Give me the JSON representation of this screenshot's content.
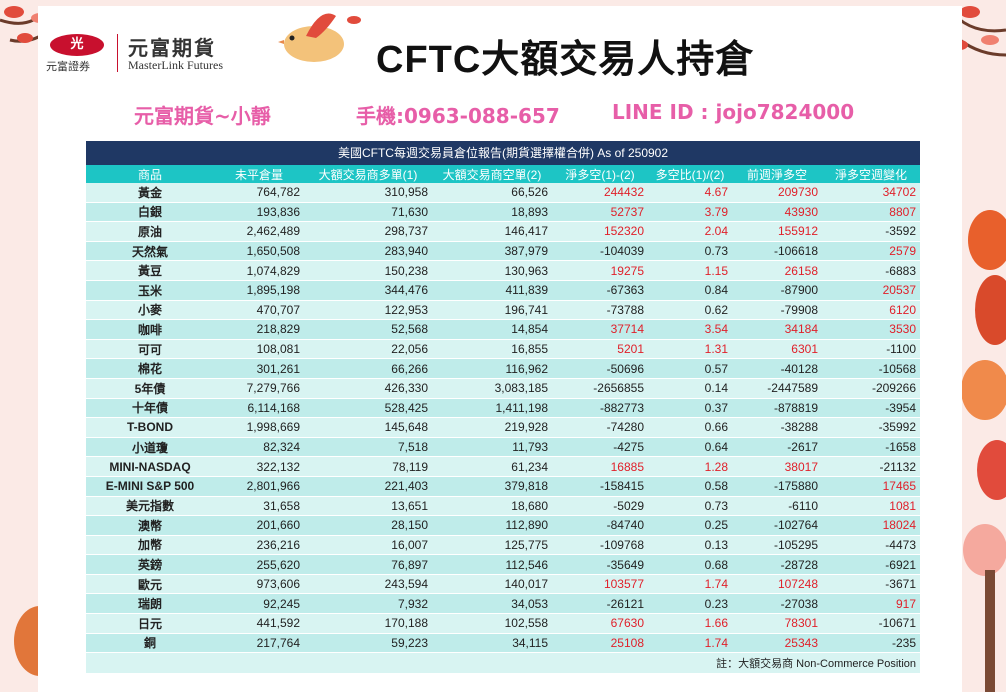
{
  "header": {
    "logo_mark": "光",
    "logo_sub": "元富證券",
    "logo_cn": "元富期貨",
    "logo_en": "MasterLink Futures",
    "title": "CFTC大額交易人持倉"
  },
  "contact": {
    "name": "元富期貨~小靜",
    "phone": "手機:0963-088-657",
    "line": "LINE ID : jojo7824000"
  },
  "table": {
    "title": "美國CFTC每週交易員倉位報告(期貨選擇權合併) As of  250902",
    "headers": [
      "商品",
      "未平倉量",
      "大額交易商多單(1)",
      "大額交易商空單(2)",
      "淨多空(1)-(2)",
      "多空比(1)/(2)",
      "前週淨多空",
      "淨多空週變化"
    ],
    "rows": [
      [
        "黃金",
        "764,782",
        "310,958",
        "66,526",
        "244432",
        "4.67",
        "209730",
        "34702"
      ],
      [
        "白銀",
        "193,836",
        "71,630",
        "18,893",
        "52737",
        "3.79",
        "43930",
        "8807"
      ],
      [
        "原油",
        "2,462,489",
        "298,737",
        "146,417",
        "152320",
        "2.04",
        "155912",
        "-3592"
      ],
      [
        "天然氣",
        "1,650,508",
        "283,940",
        "387,979",
        "-104039",
        "0.73",
        "-106618",
        "2579"
      ],
      [
        "黃豆",
        "1,074,829",
        "150,238",
        "130,963",
        "19275",
        "1.15",
        "26158",
        "-6883"
      ],
      [
        "玉米",
        "1,895,198",
        "344,476",
        "411,839",
        "-67363",
        "0.84",
        "-87900",
        "20537"
      ],
      [
        "小麥",
        "470,707",
        "122,953",
        "196,741",
        "-73788",
        "0.62",
        "-79908",
        "6120"
      ],
      [
        "咖啡",
        "218,829",
        "52,568",
        "14,854",
        "37714",
        "3.54",
        "34184",
        "3530"
      ],
      [
        "可可",
        "108,081",
        "22,056",
        "16,855",
        "5201",
        "1.31",
        "6301",
        "-1100"
      ],
      [
        "棉花",
        "301,261",
        "66,266",
        "116,962",
        "-50696",
        "0.57",
        "-40128",
        "-10568"
      ],
      [
        "5年債",
        "7,279,766",
        "426,330",
        "3,083,185",
        "-2656855",
        "0.14",
        "-2447589",
        "-209266"
      ],
      [
        "十年債",
        "6,114,168",
        "528,425",
        "1,411,198",
        "-882773",
        "0.37",
        "-878819",
        "-3954"
      ],
      [
        "T-BOND",
        "1,998,669",
        "145,648",
        "219,928",
        "-74280",
        "0.66",
        "-38288",
        "-35992"
      ],
      [
        "小道瓊",
        "82,324",
        "7,518",
        "11,793",
        "-4275",
        "0.64",
        "-2617",
        "-1658"
      ],
      [
        "MINI-NASDAQ",
        "322,132",
        "78,119",
        "61,234",
        "16885",
        "1.28",
        "38017",
        "-21132"
      ],
      [
        "E-MINI S&P 500",
        "2,801,966",
        "221,403",
        "379,818",
        "-158415",
        "0.58",
        "-175880",
        "17465"
      ],
      [
        "美元指數",
        "31,658",
        "13,651",
        "18,680",
        "-5029",
        "0.73",
        "-6110",
        "1081"
      ],
      [
        "澳幣",
        "201,660",
        "28,150",
        "112,890",
        "-84740",
        "0.25",
        "-102764",
        "18024"
      ],
      [
        "加幣",
        "236,216",
        "16,007",
        "125,775",
        "-109768",
        "0.13",
        "-105295",
        "-4473"
      ],
      [
        "英鎊",
        "255,620",
        "76,897",
        "112,546",
        "-35649",
        "0.68",
        "-28728",
        "-6921"
      ],
      [
        "歐元",
        "973,606",
        "243,594",
        "140,017",
        "103577",
        "1.74",
        "107248",
        "-3671"
      ],
      [
        "瑞朗",
        "92,245",
        "7,932",
        "34,053",
        "-26121",
        "0.23",
        "-27038",
        "917"
      ],
      [
        "日元",
        "441,592",
        "170,188",
        "102,558",
        "67630",
        "1.66",
        "78301",
        "-10671"
      ],
      [
        "銅",
        "217,764",
        "59,223",
        "34,115",
        "25108",
        "1.74",
        "25343",
        "-235"
      ]
    ],
    "note": "註：大額交易商 Non-Commerce Position"
  },
  "colors": {
    "title_bar": "#1f3864",
    "header_bar": "#1dc5c5",
    "positive": "#e0202a",
    "contact": "#e75ea8"
  }
}
